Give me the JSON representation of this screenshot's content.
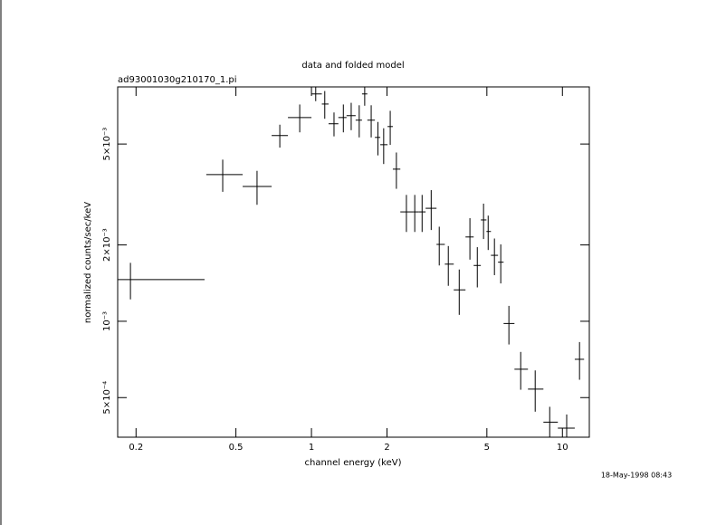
{
  "chart_data": {
    "type": "errorbar",
    "title": "data and folded model",
    "subtitle": "ad93001030g210170_1.pi",
    "x_label": "channel energy (keV)",
    "y_label": "normalized counts/sec/keV",
    "timestamp": "18-May-1998 08:43",
    "xscale": "log",
    "yscale": "log",
    "color": "#000000",
    "xlim": [
      0.169,
      12.8
    ],
    "ylim": [
      0.000349,
      0.0084
    ],
    "xticks": [
      0.2,
      0.5,
      1,
      2,
      5,
      10
    ],
    "yticks": [
      {
        "value": 0.0005,
        "label": "5×10⁻⁴"
      },
      {
        "value": 0.001,
        "label": "10⁻³"
      },
      {
        "value": 0.002,
        "label": "2×10⁻³"
      },
      {
        "value": 0.005,
        "label": "5×10⁻³"
      }
    ],
    "x": [
      0.19,
      0.443,
      0.607,
      0.748,
      0.898,
      1.04,
      1.13,
      1.23,
      1.34,
      1.44,
      1.55,
      1.63,
      1.73,
      1.84,
      1.94,
      2.06,
      2.18,
      2.39,
      2.58,
      2.76,
      3.0,
      3.23,
      3.51,
      3.88,
      4.28,
      4.58,
      4.85,
      5.06,
      5.36,
      5.68,
      6.12,
      6.82,
      7.79,
      8.9,
      10.4,
      11.7
    ],
    "x_low": [
      0.169,
      0.381,
      0.532,
      0.694,
      0.806,
      1.0,
      1.1,
      1.17,
      1.28,
      1.38,
      1.5,
      1.59,
      1.67,
      1.79,
      1.88,
      2.01,
      2.11,
      2.26,
      2.54,
      2.67,
      2.85,
      3.15,
      3.4,
      3.69,
      4.11,
      4.43,
      4.73,
      4.98,
      5.19,
      5.54,
      5.83,
      6.44,
      7.29,
      8.4,
      9.59,
      11.2
    ],
    "x_high": [
      0.375,
      0.532,
      0.694,
      0.806,
      1.0,
      1.1,
      1.17,
      1.28,
      1.38,
      1.5,
      1.59,
      1.67,
      1.79,
      1.88,
      2.01,
      2.11,
      2.26,
      2.54,
      2.67,
      2.85,
      3.15,
      3.4,
      3.69,
      4.11,
      4.43,
      4.73,
      4.98,
      5.19,
      5.54,
      5.83,
      6.44,
      7.29,
      8.4,
      9.59,
      11.2,
      12.2
    ],
    "values": [
      0.00146,
      0.00379,
      0.0034,
      0.0054,
      0.00636,
      0.00788,
      0.00719,
      0.00601,
      0.00636,
      0.00647,
      0.00621,
      0.00788,
      0.00621,
      0.00531,
      0.00497,
      0.00586,
      0.00398,
      0.0027,
      0.0027,
      0.0027,
      0.00279,
      0.00201,
      0.00168,
      0.00133,
      0.00215,
      0.00166,
      0.00251,
      0.00226,
      0.00182,
      0.00171,
      0.00098,
      0.000647,
      0.00054,
      0.0004,
      0.000379,
      0.000708
    ],
    "yerr": [
      0.00024,
      0.00055,
      0.00052,
      0.00056,
      0.0008,
      0.0005,
      0.0009,
      0.00065,
      0.0008,
      0.0008,
      0.0009,
      0.0008,
      0.0009,
      0.0008,
      0.0008,
      0.0009,
      0.00065,
      0.00045,
      0.00045,
      0.00045,
      0.0005,
      0.00035,
      0.0003,
      0.00027,
      0.0004,
      0.0003,
      0.0004,
      0.00035,
      0.0003,
      0.0003,
      0.00017,
      0.00011,
      0.0001,
      6e-05,
      5e-05,
      0.00012
    ]
  }
}
